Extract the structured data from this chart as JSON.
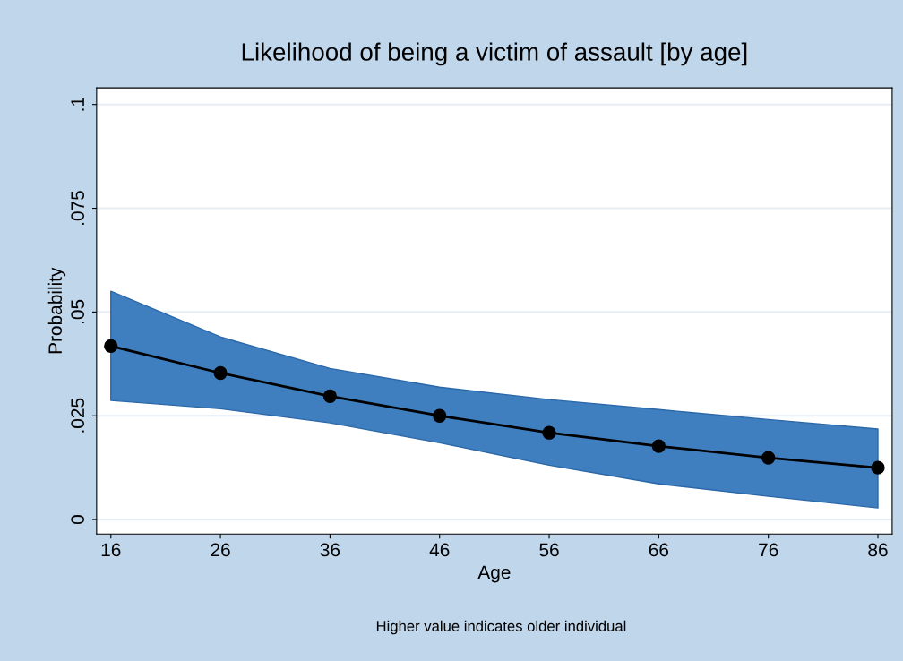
{
  "chart_data": {
    "type": "line",
    "title": "Likelihood of being a victim of assault [by age]",
    "xlabel": "Age",
    "ylabel": "Probability",
    "annotations": [
      "Higher value indicates older individual"
    ],
    "x": [
      16,
      26,
      36,
      46,
      56,
      66,
      76,
      86
    ],
    "series": [
      {
        "color": "#000000",
        "values": [
          0.0418,
          0.0353,
          0.0297,
          0.025,
          0.0209,
          0.0177,
          0.0149,
          0.0125
        ],
        "lower": [
          0.0287,
          0.0267,
          0.0233,
          0.0185,
          0.0131,
          0.0086,
          0.0056,
          0.0028
        ],
        "upper": [
          0.055,
          0.044,
          0.0364,
          0.0319,
          0.0289,
          0.0265,
          0.0241,
          0.0218
        ]
      }
    ],
    "xlim": [
      14.7,
      87.3
    ],
    "ylim": [
      -0.0035,
      0.104
    ],
    "xticks": [
      16,
      26,
      36,
      46,
      56,
      66,
      76,
      86
    ],
    "yticks": [
      {
        "value": 0,
        "label": "0"
      },
      {
        "value": 0.025,
        "label": ".025"
      },
      {
        "value": 0.05,
        "label": ".05"
      },
      {
        "value": 0.075,
        "label": ".075"
      },
      {
        "value": 0.1,
        "label": ".1"
      }
    ],
    "grid": "y",
    "marker": "circle",
    "line_style": "solid",
    "legend": false
  }
}
